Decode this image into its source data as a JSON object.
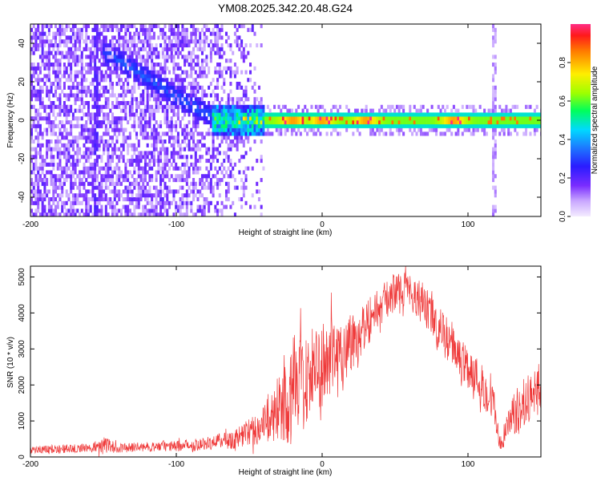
{
  "title": "YM08.2025.342.20.48.G24",
  "chart_data": [
    {
      "type": "heatmap",
      "xlabel": "Height of straight line (km)",
      "ylabel": "Frequency (Hz)",
      "xlim": [
        -200,
        150
      ],
      "ylim": [
        -50,
        50
      ],
      "xticks": [
        -200,
        -100,
        0,
        100
      ],
      "yticks": [
        -40,
        -20,
        0,
        20,
        40
      ],
      "colorbar": {
        "label": "Normalized spectral amplitude",
        "range": [
          0,
          1
        ],
        "ticks": [
          0.0,
          0.2,
          0.4,
          0.6,
          0.8
        ],
        "tick_labels": [
          "0.0",
          "0.2",
          "0.4",
          "0.6",
          "0.8"
        ]
      },
      "features": {
        "descending_track": {
          "x": [
            -145,
            -120,
            -95,
            -75
          ],
          "y": [
            34,
            22,
            10,
            2
          ]
        },
        "main_band": {
          "x_start": -75,
          "x_end": 150,
          "center_hz": 0,
          "peak_x": [
            -20,
            0,
            30,
            90
          ]
        },
        "vertical_stripe_x": [
          -155,
          118
        ]
      }
    },
    {
      "type": "line",
      "series": [
        {
          "name": "SNR",
          "color": "#ef3a3a"
        }
      ],
      "xlabel": "Height of straight line (km)",
      "ylabel": "SNR (10 * v/v)",
      "xlim": [
        -200,
        150
      ],
      "ylim": [
        0,
        5300
      ],
      "xticks": [
        -200,
        -100,
        0,
        100
      ],
      "yticks": [
        0,
        1000,
        2000,
        3000,
        4000,
        5000
      ],
      "envelope": {
        "x": [
          -200,
          -160,
          -150,
          -140,
          -120,
          -100,
          -80,
          -70,
          -60,
          -50,
          -40,
          -30,
          -25,
          -20,
          -10,
          0,
          10,
          20,
          30,
          40,
          50,
          60,
          70,
          80,
          90,
          100,
          110,
          118,
          122,
          130,
          140,
          150
        ],
        "mid": [
          200,
          250,
          320,
          250,
          280,
          300,
          380,
          450,
          500,
          700,
          900,
          1300,
          1600,
          1900,
          2200,
          2600,
          2700,
          3200,
          3700,
          4200,
          4600,
          4700,
          4200,
          3600,
          3000,
          2500,
          2000,
          1400,
          300,
          1100,
          1600,
          2000
        ],
        "amp": [
          110,
          120,
          250,
          130,
          130,
          150,
          180,
          220,
          280,
          400,
          550,
          850,
          1400,
          1500,
          1300,
          1200,
          1200,
          900,
          700,
          550,
          500,
          500,
          600,
          600,
          600,
          600,
          600,
          500,
          250,
          550,
          700,
          700
        ]
      }
    }
  ]
}
